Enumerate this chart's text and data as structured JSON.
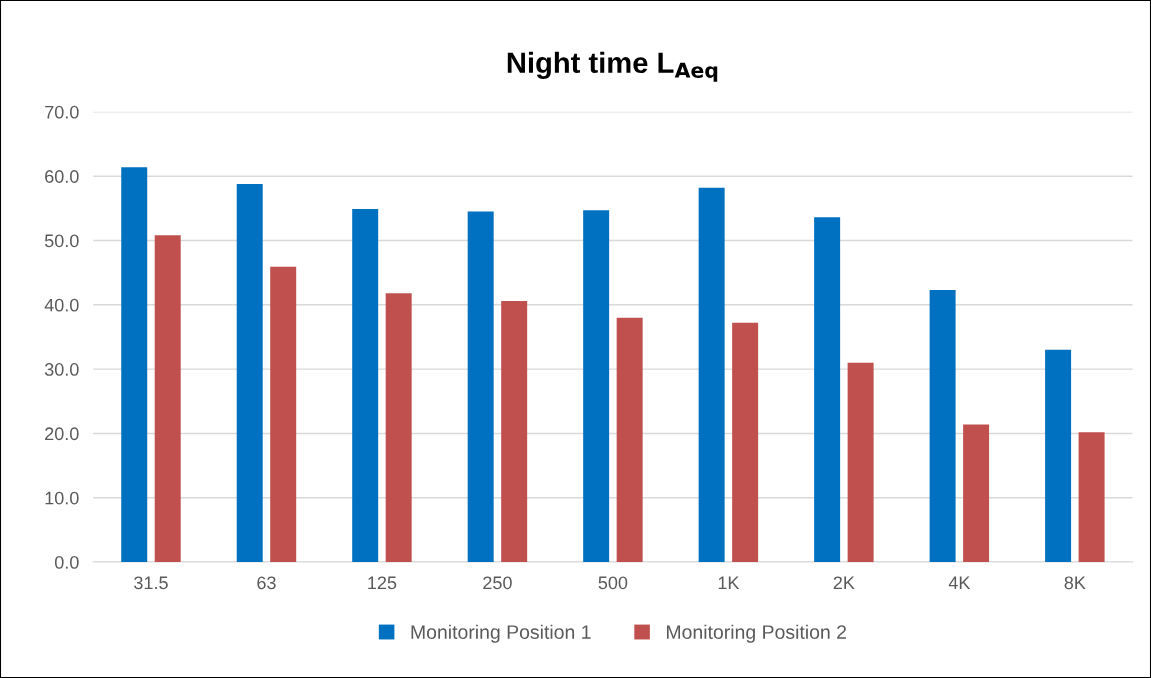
{
  "chart_data": {
    "type": "bar",
    "title": "Night time L$_{Aeq}$",
    "categories": [
      "31.5",
      "63",
      "125",
      "250",
      "500",
      "1K",
      "2K",
      "4K",
      "8K"
    ],
    "series": [
      {
        "name": "Monitoring Position 1",
        "color": "#0070c0",
        "values": [
          61.4,
          58.8,
          54.9,
          54.5,
          54.7,
          58.2,
          53.6,
          42.3,
          33.0
        ]
      },
      {
        "name": "Monitoring Position 2",
        "color": "#c0504d",
        "values": [
          50.8,
          45.9,
          41.8,
          40.6,
          38.0,
          37.2,
          31.0,
          21.4,
          20.2
        ]
      }
    ],
    "ylim": [
      0,
      70
    ],
    "yticks": [
      {
        "value": 0,
        "label": "0.0"
      },
      {
        "value": 10,
        "label": "10.0"
      },
      {
        "value": 20,
        "label": "20.0"
      },
      {
        "value": 30,
        "label": "30.0"
      },
      {
        "value": 40,
        "label": "40.0"
      },
      {
        "value": 50,
        "label": "50.0"
      },
      {
        "value": 60,
        "label": "60.0"
      },
      {
        "value": 70,
        "label": "70.0"
      }
    ],
    "grid": "y",
    "legend": "bottom"
  }
}
